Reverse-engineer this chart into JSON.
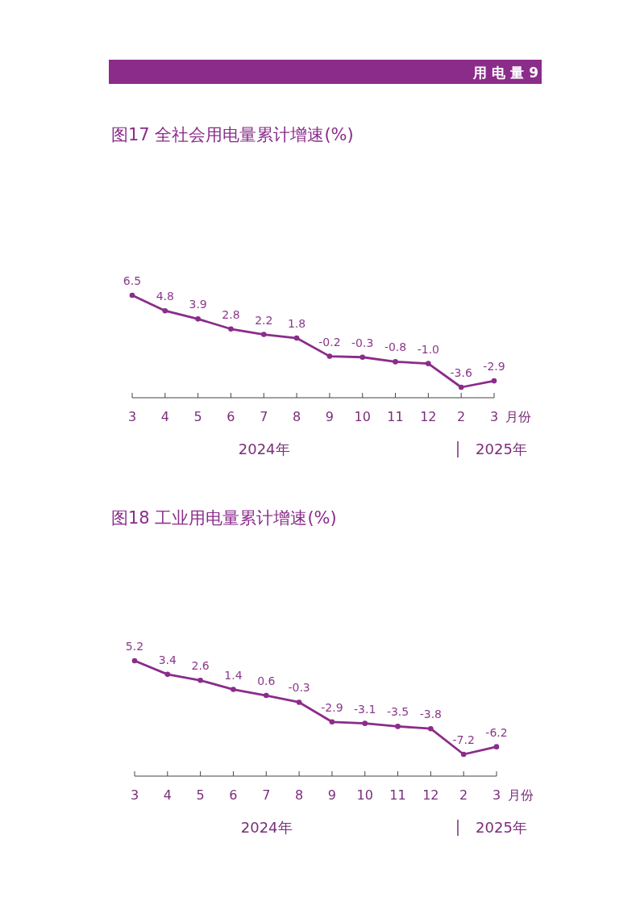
{
  "chart_data": [
    {
      "type": "line",
      "title": "图17  全社会用电量累计增速(%)",
      "xlabel": "月份",
      "categories": [
        "3",
        "4",
        "5",
        "6",
        "7",
        "8",
        "9",
        "10",
        "11",
        "12",
        "2",
        "3"
      ],
      "series": [
        {
          "color": "#8b2c8b",
          "values": [
            6.5,
            4.8,
            3.9,
            2.8,
            2.2,
            1.8,
            -0.2,
            -0.3,
            -0.8,
            -1.0,
            -3.6,
            -2.9
          ],
          "value_labels": [
            "6.5",
            "4.8",
            "3.9",
            "2.8",
            "2.2",
            "1.8",
            "-0.2",
            "-0.3",
            "-0.8",
            "-1.0",
            "-3.6",
            "-2.9"
          ]
        }
      ],
      "marker": "circle",
      "line_style": "solid",
      "tick_labels": "x",
      "annotations": [
        "用 电 量 9",
        "2024年",
        "2025年"
      ]
    },
    {
      "type": "line",
      "title": "图18  工业用电量累计增速(%)",
      "xlabel": "月份",
      "categories": [
        "3",
        "4",
        "5",
        "6",
        "7",
        "8",
        "9",
        "10",
        "11",
        "12",
        "2",
        "3"
      ],
      "series": [
        {
          "color": "#8b2c8b",
          "values": [
            5.2,
            3.4,
            2.6,
            1.4,
            0.6,
            -0.3,
            -2.9,
            -3.1,
            -3.5,
            -3.8,
            -7.2,
            -6.2
          ],
          "value_labels": [
            "5.2",
            "3.4",
            "2.6",
            "1.4",
            "0.6",
            "-0.3",
            "-2.9",
            "-3.1",
            "-3.5",
            "-3.8",
            "-7.2",
            "-6.2"
          ]
        }
      ],
      "marker": "circle",
      "line_style": "solid",
      "tick_labels": "x",
      "annotations": [
        "2024年",
        "2025年"
      ]
    }
  ]
}
